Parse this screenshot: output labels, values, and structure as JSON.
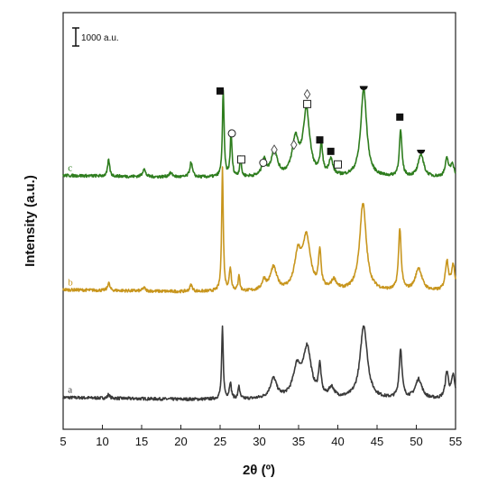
{
  "chart_data": {
    "type": "line",
    "xlabel": "2θ (º)",
    "ylabel": "Intensity (a.u.)",
    "xlim": [
      5,
      55
    ],
    "x_ticks": [
      "5",
      "10",
      "15",
      "20",
      "25",
      "30",
      "35",
      "40",
      "45",
      "50",
      "55"
    ],
    "scale_bar": {
      "label": "1000 a.u.",
      "value": 1000
    },
    "series": [
      {
        "name": "a",
        "color": "#3a3a3a",
        "offset": 0,
        "baseline": 0,
        "peaks": [
          {
            "x": 10.8,
            "h": 120,
            "w": 0.15
          },
          {
            "x": 25.3,
            "h": 2200,
            "w": 0.12
          },
          {
            "x": 26.3,
            "h": 500,
            "w": 0.15
          },
          {
            "x": 27.4,
            "h": 400,
            "w": 0.12
          },
          {
            "x": 31.8,
            "h": 600,
            "w": 0.5
          },
          {
            "x": 34.8,
            "h": 900,
            "w": 0.6
          },
          {
            "x": 36.1,
            "h": 1500,
            "w": 0.6
          },
          {
            "x": 37.7,
            "h": 900,
            "w": 0.2
          },
          {
            "x": 39.2,
            "h": 300,
            "w": 0.4
          },
          {
            "x": 43.3,
            "h": 2250,
            "w": 0.55
          },
          {
            "x": 48.0,
            "h": 1500,
            "w": 0.22
          },
          {
            "x": 50.3,
            "h": 600,
            "w": 0.5
          },
          {
            "x": 53.9,
            "h": 800,
            "w": 0.25
          },
          {
            "x": 54.7,
            "h": 700,
            "w": 0.25
          }
        ]
      },
      {
        "name": "b",
        "color": "#c8961e",
        "offset": 3300,
        "baseline": 0,
        "peaks": [
          {
            "x": 10.8,
            "h": 250,
            "w": 0.15
          },
          {
            "x": 15.3,
            "h": 100,
            "w": 0.2
          },
          {
            "x": 21.3,
            "h": 200,
            "w": 0.2
          },
          {
            "x": 25.3,
            "h": 3800,
            "w": 0.12
          },
          {
            "x": 26.3,
            "h": 700,
            "w": 0.15
          },
          {
            "x": 27.4,
            "h": 500,
            "w": 0.12
          },
          {
            "x": 30.6,
            "h": 300,
            "w": 0.3
          },
          {
            "x": 31.8,
            "h": 700,
            "w": 0.5
          },
          {
            "x": 34.9,
            "h": 1000,
            "w": 0.5
          },
          {
            "x": 36.0,
            "h": 1600,
            "w": 0.6
          },
          {
            "x": 37.7,
            "h": 1100,
            "w": 0.2
          },
          {
            "x": 39.5,
            "h": 300,
            "w": 0.4
          },
          {
            "x": 43.2,
            "h": 2700,
            "w": 0.5
          },
          {
            "x": 47.9,
            "h": 1900,
            "w": 0.2
          },
          {
            "x": 50.3,
            "h": 700,
            "w": 0.5
          },
          {
            "x": 53.9,
            "h": 900,
            "w": 0.25
          },
          {
            "x": 54.7,
            "h": 800,
            "w": 0.25
          }
        ]
      },
      {
        "name": "c",
        "color": "#2e7d1e",
        "offset": 6800,
        "baseline": 0,
        "peaks": [
          {
            "x": 10.8,
            "h": 500,
            "w": 0.15
          },
          {
            "x": 15.3,
            "h": 250,
            "w": 0.2
          },
          {
            "x": 18.7,
            "h": 120,
            "w": 0.3
          },
          {
            "x": 21.3,
            "h": 450,
            "w": 0.2
          },
          {
            "x": 25.4,
            "h": 2600,
            "w": 0.13
          },
          {
            "x": 26.4,
            "h": 1300,
            "w": 0.14
          },
          {
            "x": 27.6,
            "h": 600,
            "w": 0.12
          },
          {
            "x": 30.6,
            "h": 500,
            "w": 0.3
          },
          {
            "x": 31.9,
            "h": 800,
            "w": 0.45
          },
          {
            "x": 34.6,
            "h": 1100,
            "w": 0.5
          },
          {
            "x": 36.0,
            "h": 2000,
            "w": 0.5
          },
          {
            "x": 37.9,
            "h": 900,
            "w": 0.2
          },
          {
            "x": 39.1,
            "h": 500,
            "w": 0.3
          },
          {
            "x": 43.3,
            "h": 2700,
            "w": 0.45
          },
          {
            "x": 48.0,
            "h": 1400,
            "w": 0.2
          },
          {
            "x": 50.6,
            "h": 700,
            "w": 0.4
          },
          {
            "x": 53.9,
            "h": 550,
            "w": 0.25
          },
          {
            "x": 54.6,
            "h": 400,
            "w": 0.25
          }
        ]
      }
    ],
    "markers": [
      {
        "symbol": "■",
        "name": "filled-square",
        "x": 25.0,
        "y": 9700
      },
      {
        "symbol": "○",
        "name": "open-circle",
        "x": 26.5,
        "y": 8400
      },
      {
        "symbol": "□",
        "name": "open-square",
        "x": 27.7,
        "y": 7600
      },
      {
        "symbol": "○",
        "name": "open-circle",
        "x": 30.5,
        "y": 7500
      },
      {
        "symbol": "◊",
        "name": "open-diamond",
        "x": 31.9,
        "y": 7900
      },
      {
        "symbol": "◊",
        "name": "open-diamond",
        "x": 34.4,
        "y": 8050
      },
      {
        "symbol": "◊",
        "name": "open-diamond",
        "x": 36.1,
        "y": 9600
      },
      {
        "symbol": "□",
        "name": "open-square",
        "x": 36.1,
        "y": 9300
      },
      {
        "symbol": "■",
        "name": "filled-square",
        "x": 37.7,
        "y": 8200
      },
      {
        "symbol": "■",
        "name": "filled-square",
        "x": 39.1,
        "y": 7850
      },
      {
        "symbol": "□",
        "name": "open-square",
        "x": 40.0,
        "y": 7450
      },
      {
        "symbol": "◓",
        "name": "half-circle",
        "x": 43.3,
        "y": 9850
      },
      {
        "symbol": "■",
        "name": "filled-square",
        "x": 47.9,
        "y": 8900
      },
      {
        "symbol": "◓",
        "name": "half-circle",
        "x": 50.6,
        "y": 7900
      }
    ]
  }
}
